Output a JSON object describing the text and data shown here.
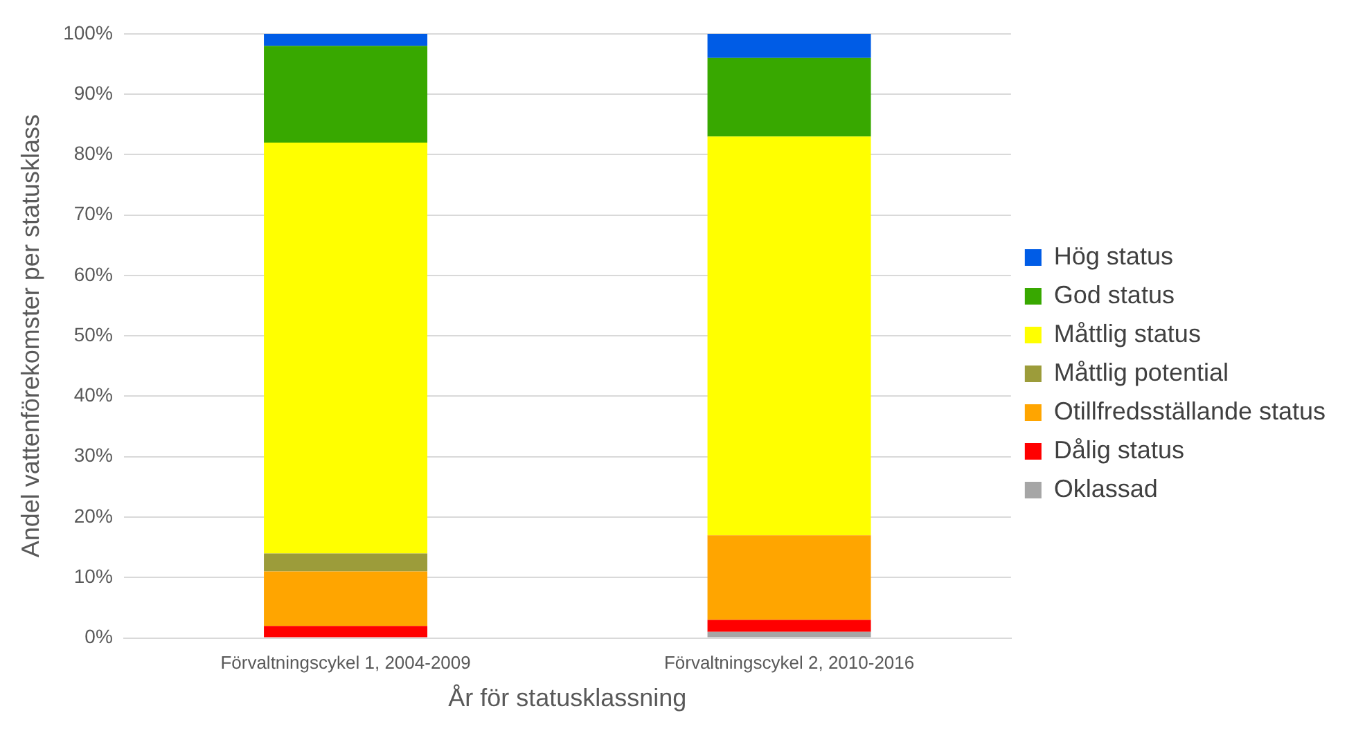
{
  "chart_data": {
    "type": "bar",
    "stacked": true,
    "xlabel": "År för statusklassning",
    "ylabel": "Andel vattenförekomster per statusklass",
    "categories": [
      "Förvaltningscykel 1, 2004-2009",
      "Förvaltningscykel 2, 2010-2016"
    ],
    "series": [
      {
        "name": "Oklassad",
        "color": "#a6a6a6",
        "values": [
          0,
          1
        ]
      },
      {
        "name": "Dålig status",
        "color": "#ff0000",
        "values": [
          2,
          2
        ]
      },
      {
        "name": "Otillfredsställande status",
        "color": "#ffa500",
        "values": [
          9,
          14
        ]
      },
      {
        "name": "Måttlig potential",
        "color": "#9c9c3a",
        "values": [
          3,
          0
        ]
      },
      {
        "name": "Måttlig status",
        "color": "#ffff00",
        "values": [
          68,
          66
        ]
      },
      {
        "name": "God status",
        "color": "#38a800",
        "values": [
          16,
          13
        ]
      },
      {
        "name": "Hög status",
        "color": "#005ce6",
        "values": [
          2,
          4
        ]
      }
    ],
    "ylim": [
      0,
      100
    ],
    "yticks": [
      {
        "value": 0,
        "label": "0%"
      },
      {
        "value": 10,
        "label": "10%"
      },
      {
        "value": 20,
        "label": "20%"
      },
      {
        "value": 30,
        "label": "30%"
      },
      {
        "value": 40,
        "label": "40%"
      },
      {
        "value": 50,
        "label": "50%"
      },
      {
        "value": 60,
        "label": "60%"
      },
      {
        "value": 70,
        "label": "70%"
      },
      {
        "value": 80,
        "label": "80%"
      },
      {
        "value": 90,
        "label": "90%"
      },
      {
        "value": 100,
        "label": "100%"
      }
    ],
    "grid": "y",
    "legend": "right"
  }
}
